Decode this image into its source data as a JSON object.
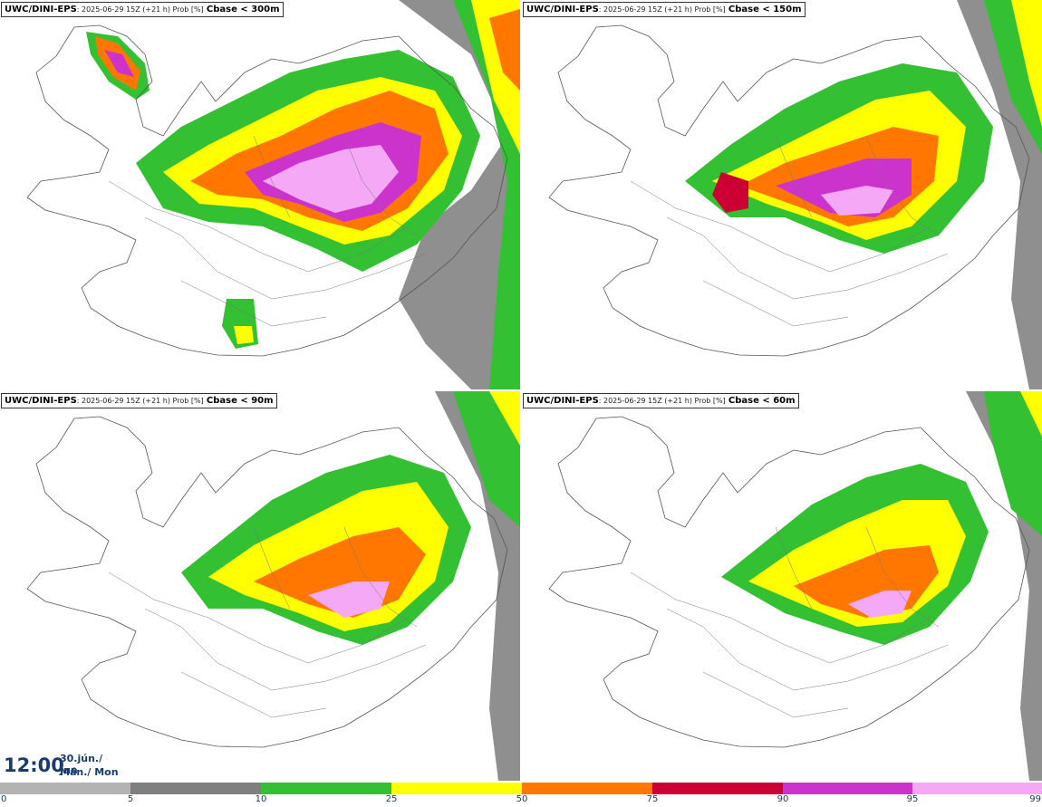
{
  "panels": [
    {
      "id": "p300",
      "model": "UWC/DINI-EPS",
      "run": ": 2025-06-29 15Z (+21 h) Prob [%]",
      "param": "Cbase < 300m"
    },
    {
      "id": "p150",
      "model": "UWC/DINI-EPS",
      "run": ": 2025-06-29 15Z (+21 h) Prob [%]",
      "param": "Cbase < 150m"
    },
    {
      "id": "p90",
      "model": "UWC/DINI-EPS",
      "run": ": 2025-06-29 15Z (+21 h) Prob [%]",
      "param": "Cbase < 90m"
    },
    {
      "id": "p60",
      "model": "UWC/DINI-EPS",
      "run": ": 2025-06-29 15Z (+21 h) Prob [%]",
      "param": "Cbase < 60m"
    }
  ],
  "valid_time": {
    "time": "12:00",
    "date_line1": "30.jún./ Jun",
    "date_line2": "Mán./ Mon"
  },
  "legend": {
    "ticks": [
      "0",
      "5",
      "10",
      "25",
      "50",
      "75",
      "90",
      "95",
      "99"
    ],
    "colors": [
      "#ffffff",
      "#b3b3b3",
      "#7f7f7f",
      "#33c033",
      "#ffff00",
      "#ff7700",
      "#cc0033",
      "#cc33cc",
      "#f5a8f5"
    ]
  }
}
